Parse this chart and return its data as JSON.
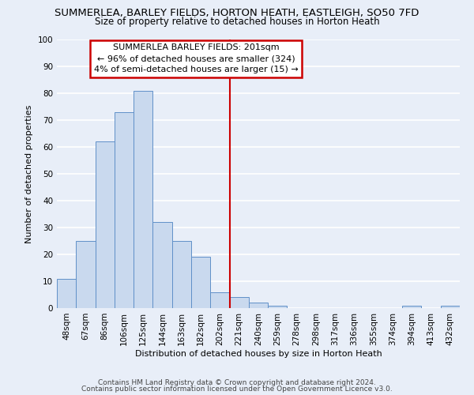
{
  "title": "SUMMERLEA, BARLEY FIELDS, HORTON HEATH, EASTLEIGH, SO50 7FD",
  "subtitle": "Size of property relative to detached houses in Horton Heath",
  "xlabel": "Distribution of detached houses by size in Horton Heath",
  "ylabel": "Number of detached properties",
  "categories": [
    "48sqm",
    "67sqm",
    "86sqm",
    "106sqm",
    "125sqm",
    "144sqm",
    "163sqm",
    "182sqm",
    "202sqm",
    "221sqm",
    "240sqm",
    "259sqm",
    "278sqm",
    "298sqm",
    "317sqm",
    "336sqm",
    "355sqm",
    "374sqm",
    "394sqm",
    "413sqm",
    "432sqm"
  ],
  "values": [
    11,
    25,
    62,
    73,
    81,
    32,
    25,
    19,
    6,
    4,
    2,
    1,
    0,
    0,
    0,
    0,
    0,
    0,
    1,
    0,
    1
  ],
  "bar_color": "#c9d9ee",
  "bar_edge_color": "#6090c8",
  "red_line_color": "#cc0000",
  "ylim": [
    0,
    100
  ],
  "yticks": [
    0,
    10,
    20,
    30,
    40,
    50,
    60,
    70,
    80,
    90,
    100
  ],
  "annotation_text": "SUMMERLEA BARLEY FIELDS: 201sqm\n← 96% of detached houses are smaller (324)\n4% of semi-detached houses are larger (15) →",
  "annotation_box_color": "#ffffff",
  "annotation_box_edge": "#cc0000",
  "footer_line1": "Contains HM Land Registry data © Crown copyright and database right 2024.",
  "footer_line2": "Contains public sector information licensed under the Open Government Licence v3.0.",
  "background_color": "#e8eef8",
  "grid_color": "#ffffff",
  "title_fontsize": 9.5,
  "subtitle_fontsize": 8.5,
  "axis_label_fontsize": 8,
  "tick_fontsize": 7.5,
  "annotation_fontsize": 8,
  "footer_fontsize": 6.5
}
